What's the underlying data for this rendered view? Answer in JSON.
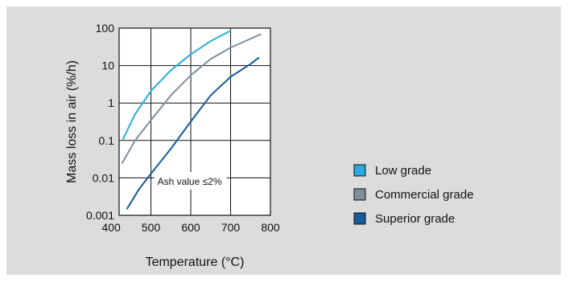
{
  "chart_data": {
    "type": "line",
    "title": "",
    "xlabel": "Temperature (°C)",
    "ylabel": "Mass loss in air (%/h)",
    "xlim": [
      420,
      800
    ],
    "ylim": [
      0.001,
      100
    ],
    "y_scale": "log",
    "x_ticks": [
      400,
      500,
      600,
      700,
      800
    ],
    "y_ticks": [
      {
        "value": 0.001,
        "label": "0.001"
      },
      {
        "value": 0.01,
        "label": "0.01"
      },
      {
        "value": 0.1,
        "label": "0.1"
      },
      {
        "value": 1,
        "label": "1"
      },
      {
        "value": 10,
        "label": "10"
      },
      {
        "value": 100,
        "label": "100"
      }
    ],
    "grid": true,
    "legend_position": "right",
    "annotation": "Ash value ≤2%",
    "series": [
      {
        "name": "Low grade",
        "color": "#2aa9e0",
        "points": [
          [
            430,
            0.11
          ],
          [
            460,
            0.5
          ],
          [
            500,
            2.1
          ],
          [
            550,
            7.5
          ],
          [
            600,
            20
          ],
          [
            650,
            45
          ],
          [
            700,
            85
          ]
        ]
      },
      {
        "name": "Commercial grade",
        "color": "#7f8f9c",
        "points": [
          [
            428,
            0.025
          ],
          [
            460,
            0.1
          ],
          [
            500,
            0.35
          ],
          [
            550,
            1.6
          ],
          [
            600,
            5.5
          ],
          [
            650,
            15
          ],
          [
            700,
            30
          ],
          [
            750,
            52
          ],
          [
            775,
            68
          ]
        ]
      },
      {
        "name": "Superior grade",
        "color": "#155a99",
        "points": [
          [
            440,
            0.0015
          ],
          [
            470,
            0.005
          ],
          [
            500,
            0.013
          ],
          [
            550,
            0.06
          ],
          [
            600,
            0.32
          ],
          [
            650,
            1.6
          ],
          [
            700,
            5
          ],
          [
            750,
            11
          ],
          [
            770,
            16
          ]
        ]
      }
    ]
  }
}
